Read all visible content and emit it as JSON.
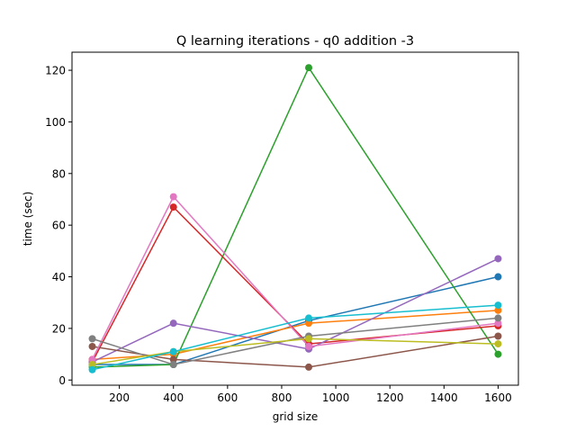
{
  "chart_data": {
    "type": "line",
    "title": "Q learning iterations - q0 addition -3",
    "xlabel": "grid size",
    "ylabel": "time (sec)",
    "x": [
      100,
      400,
      900,
      1600
    ],
    "xlim": [
      25,
      1675
    ],
    "ylim": [
      -2,
      127
    ],
    "xticks": [
      200,
      400,
      600,
      800,
      1000,
      1200,
      1400,
      1600
    ],
    "yticks": [
      0,
      20,
      40,
      60,
      80,
      100,
      120
    ],
    "grid": false,
    "series": [
      {
        "color": "#1f77b4",
        "values": [
          6,
          6,
          23,
          40
        ]
      },
      {
        "color": "#ff7f0e",
        "values": [
          8,
          10,
          22,
          27
        ]
      },
      {
        "color": "#2ca02c",
        "values": [
          5,
          6,
          121,
          10
        ]
      },
      {
        "color": "#d62728",
        "values": [
          7,
          67,
          14,
          21
        ]
      },
      {
        "color": "#9467bd",
        "values": [
          7,
          22,
          12,
          47
        ]
      },
      {
        "color": "#8c564b",
        "values": [
          13,
          8,
          5,
          17
        ]
      },
      {
        "color": "#e377c2",
        "values": [
          8,
          71,
          13,
          22
        ]
      },
      {
        "color": "#7f7f7f",
        "values": [
          16,
          6,
          17,
          24
        ]
      },
      {
        "color": "#bcbd22",
        "values": [
          6,
          11,
          16,
          14
        ]
      },
      {
        "color": "#17becf",
        "values": [
          4,
          11,
          24,
          29
        ]
      }
    ]
  }
}
